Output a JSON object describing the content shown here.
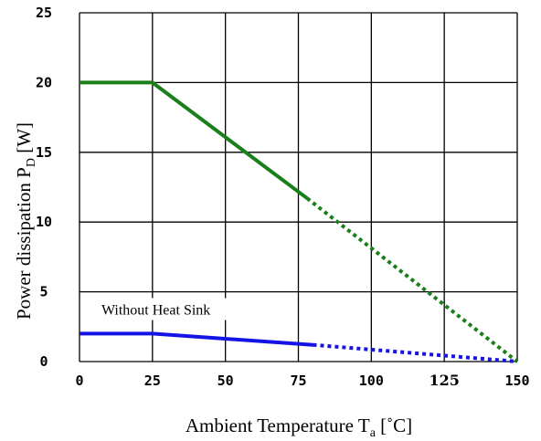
{
  "chart_data": {
    "type": "line",
    "title": "",
    "xlabel": {
      "main": "Ambient Temperature T",
      "sub": "a",
      "tail": " [˚C]"
    },
    "ylabel": {
      "main": "Power dissipation P",
      "sub": "D",
      "tail": " [W]"
    },
    "xlim": [
      0,
      150
    ],
    "ylim": [
      0,
      25
    ],
    "grid": true,
    "x_ticks": [
      {
        "label": "0",
        "value": 0
      },
      {
        "label": "25",
        "value": 25
      },
      {
        "label": "50",
        "value": 50
      },
      {
        "label": "75",
        "value": 75
      },
      {
        "label": "100",
        "value": 100
      },
      {
        "label": "125",
        "value": 125
      },
      {
        "label": "150",
        "value": 150
      }
    ],
    "y_ticks": [
      {
        "label": "0",
        "value": 0
      },
      {
        "label": "5",
        "value": 5
      },
      {
        "label": "10",
        "value": 10
      },
      {
        "label": "15",
        "value": 15
      },
      {
        "label": "20",
        "value": 20
      },
      {
        "label": "25",
        "value": 25
      }
    ],
    "series": [
      {
        "color": "#1a7f1a",
        "solid": [
          [
            0,
            20
          ],
          [
            25,
            20
          ],
          [
            78,
            11.7
          ]
        ],
        "dotted": [
          [
            78,
            11.7
          ],
          [
            150,
            0
          ]
        ]
      },
      {
        "color": "#1414e6",
        "solid": [
          [
            0,
            2
          ],
          [
            25,
            2
          ],
          [
            80,
            1.2
          ]
        ],
        "dotted": [
          [
            80,
            1.2
          ],
          [
            150,
            0
          ]
        ]
      }
    ],
    "annotations": [
      {
        "text": "Without Heat Sink",
        "x": 5,
        "y": 3.5
      }
    ]
  }
}
